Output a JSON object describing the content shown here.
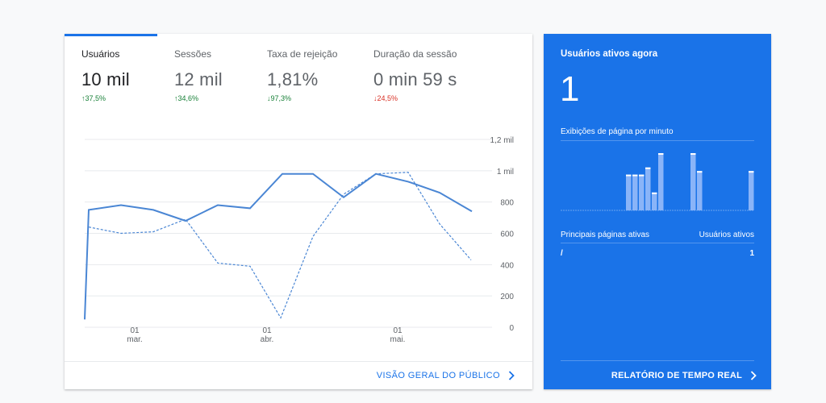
{
  "overview": {
    "metrics": [
      {
        "label": "Usuários",
        "value": "10 mil",
        "delta": "37,5%",
        "dir": "up"
      },
      {
        "label": "Sessões",
        "value": "12 mil",
        "delta": "34,6%",
        "dir": "up"
      },
      {
        "label": "Taxa de rejeição",
        "value": "1,81%",
        "delta": "97,3%",
        "dir": "down-good"
      },
      {
        "label": "Duração da sessão",
        "value": "0 min 59 s",
        "delta": "24,5%",
        "dir": "down"
      }
    ],
    "footer_link": "VISÃO GERAL DO PÚBLICO"
  },
  "chart_data": {
    "type": "line",
    "x_ticks": [
      {
        "day": "01",
        "month": "mar."
      },
      {
        "day": "01",
        "month": "abr."
      },
      {
        "day": "01",
        "month": "mai."
      }
    ],
    "y_ticks": [
      "0",
      "200",
      "400",
      "600",
      "800",
      "1 mil",
      "1,2 mil"
    ],
    "ylim": [
      0,
      1200
    ],
    "grid": true,
    "series": [
      {
        "style": "solid",
        "values": [
          50,
          750,
          780,
          750,
          680,
          780,
          760,
          980,
          980,
          830,
          980,
          930,
          860,
          740
        ]
      },
      {
        "style": "dashed",
        "values": null,
        "values_sparse": [
          [
            0.05,
            640
          ],
          [
            1,
            600
          ],
          [
            2,
            610
          ],
          [
            3,
            690
          ],
          [
            4,
            410
          ],
          [
            5,
            390
          ],
          [
            6,
            60
          ],
          [
            7,
            580
          ],
          [
            8,
            850
          ],
          [
            9,
            980
          ],
          [
            9.8,
            990
          ],
          [
            10.7,
            660
          ],
          [
            11.8,
            430
          ]
        ]
      }
    ]
  },
  "realtime": {
    "title": "Usuários ativos agora",
    "active_count": "1",
    "pageviews_label": "Exibições de página por minuto",
    "pageviews_per_minute": [
      0,
      0,
      0,
      0,
      0,
      0,
      0,
      0,
      0,
      0,
      1,
      1,
      1,
      1.2,
      0.5,
      1.6,
      0,
      0,
      0,
      0,
      1.6,
      1.1,
      0,
      0,
      0,
      0,
      0,
      0,
      0,
      1.1
    ],
    "col_page": "Principais páginas ativas",
    "col_users": "Usuários ativos",
    "rows": [
      {
        "page": "/",
        "users": "1"
      }
    ],
    "footer_link": "RELATÓRIO DE TEMPO REAL"
  },
  "colors": {
    "accent": "#1a73e8",
    "series": "#4a86d4",
    "up": "#188038",
    "down": "#d93025"
  }
}
